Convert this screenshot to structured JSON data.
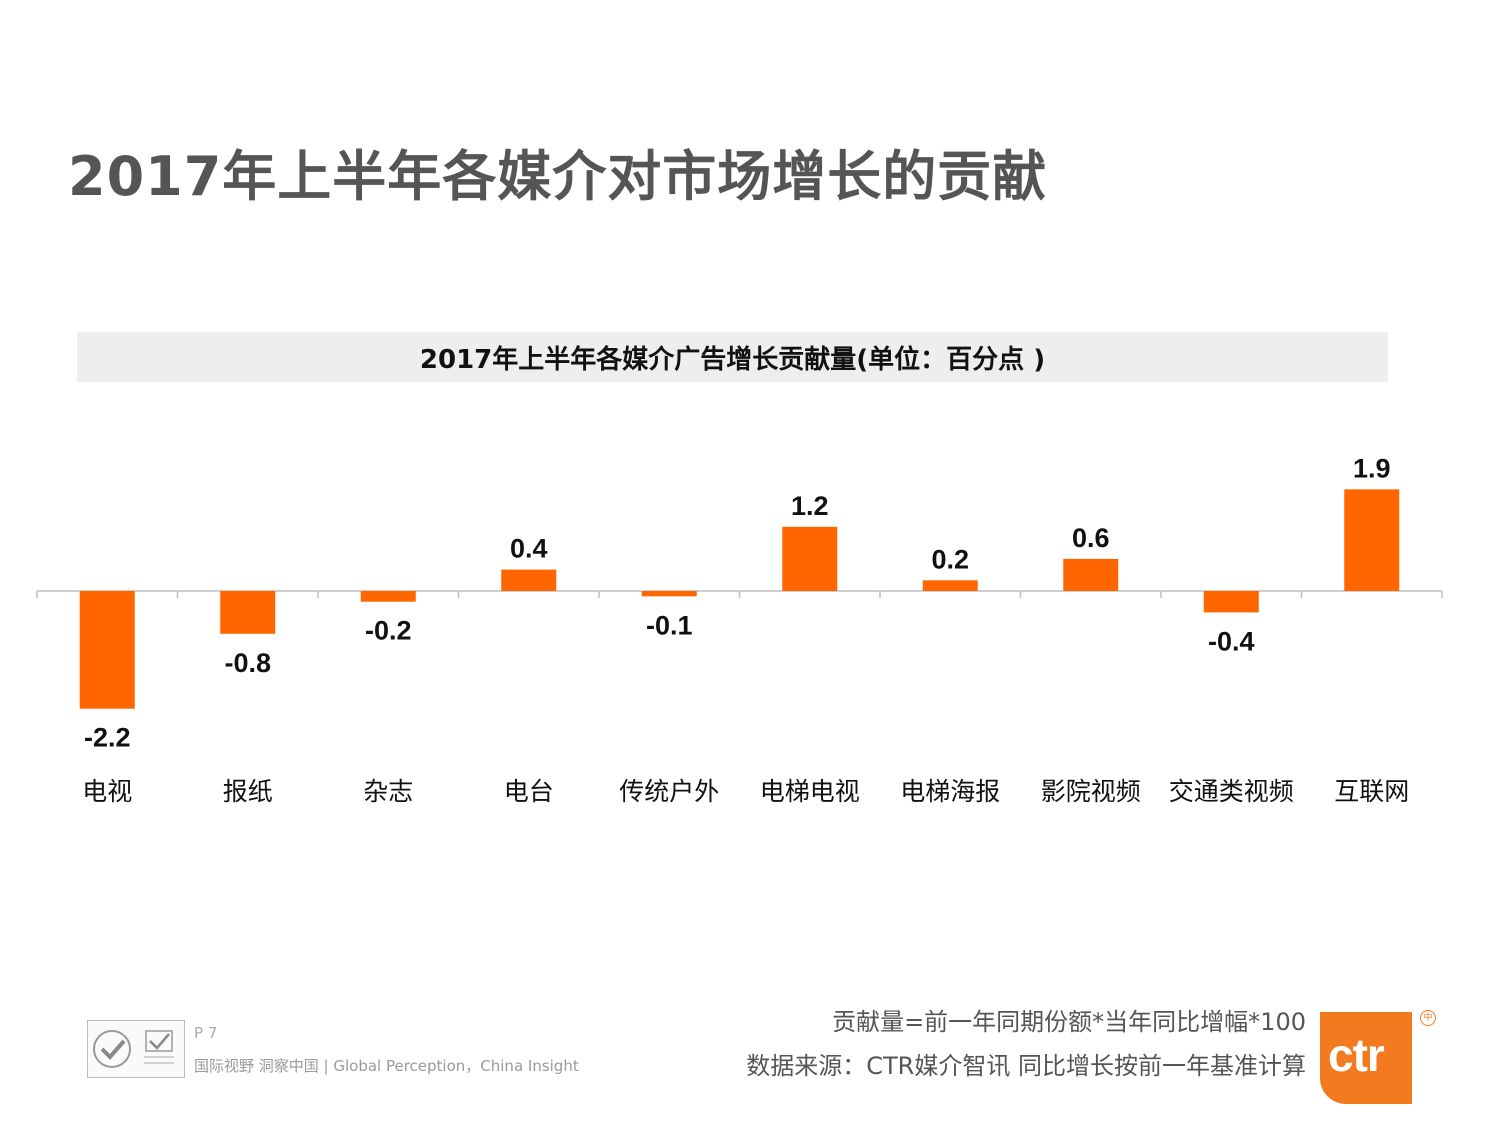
{
  "page": {
    "title": "2017年上半年各媒介对市场增长的贡献",
    "page_number": "P 7",
    "slogan": "国际视野  洞察中国 |  Global Perception，China Insight",
    "footnote_formula": "贡献量=前一年同期份额*当年同比增幅*100",
    "footnote_source": "数据来源：CTR媒介智讯   同比增长按前一年基准计算",
    "logo_text": "ctr",
    "logo_mark": "中"
  },
  "chart_data": {
    "type": "bar",
    "title": "2017年上半年各媒介广告增长贡献量(单位：百分点 )",
    "categories": [
      "电视",
      "报纸",
      "杂志",
      "电台",
      "传统户外",
      "电梯电视",
      "电梯海报",
      "影院视频",
      "交通类视频",
      "互联网"
    ],
    "values": [
      -2.2,
      -0.8,
      -0.2,
      0.4,
      -0.1,
      1.2,
      0.2,
      0.6,
      -0.4,
      1.9
    ],
    "value_labels": [
      "-2.2",
      "-0.8",
      "-0.2",
      "0.4",
      "-0.1",
      "1.2",
      "0.2",
      "0.6",
      "-0.4",
      "1.9"
    ],
    "xlabel": "",
    "ylabel": "",
    "grid": false,
    "bar_color": "#ff6600"
  }
}
